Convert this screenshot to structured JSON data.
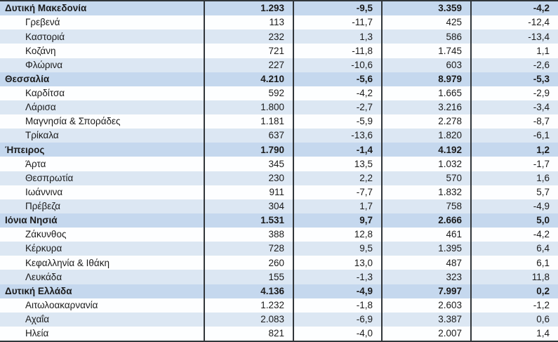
{
  "colors": {
    "region_row_bg": "#c5d8ee",
    "alt_row_bg": "#dce7f3",
    "white_row_bg": "#fdfeff",
    "border": "#31363a",
    "text": "#1b1b1b"
  },
  "table": {
    "columns": [
      "name",
      "value1",
      "value2",
      "value3",
      "value4"
    ],
    "rows": [
      {
        "label": "Δυτική Μακεδονία",
        "level": "region",
        "values": [
          "1.293",
          "-9,5",
          "3.359",
          "-4,2"
        ]
      },
      {
        "label": "Γρεβενά",
        "level": "sub",
        "values": [
          "113",
          "-11,7",
          "425",
          "-12,4"
        ]
      },
      {
        "label": "Καστοριά",
        "level": "sub",
        "values": [
          "232",
          "1,3",
          "586",
          "-13,4"
        ]
      },
      {
        "label": "Κοζάνη",
        "level": "sub",
        "values": [
          "721",
          "-11,8",
          "1.745",
          "1,1"
        ]
      },
      {
        "label": "Φλώρινα",
        "level": "sub",
        "values": [
          "227",
          "-10,6",
          "603",
          "-2,6"
        ]
      },
      {
        "label": "Θεσσαλία",
        "level": "region",
        "values": [
          "4.210",
          "-5,6",
          "8.979",
          "-5,3"
        ]
      },
      {
        "label": "Καρδίτσα",
        "level": "sub",
        "values": [
          "592",
          "-4,2",
          "1.665",
          "-2,9"
        ]
      },
      {
        "label": "Λάρισα",
        "level": "sub",
        "values": [
          "1.800",
          "-2,7",
          "3.216",
          "-3,4"
        ]
      },
      {
        "label": "Μαγνησία & Σποράδες",
        "level": "sub",
        "values": [
          "1.181",
          "-5,9",
          "2.278",
          "-8,7"
        ]
      },
      {
        "label": "Τρίκαλα",
        "level": "sub",
        "values": [
          "637",
          "-13,6",
          "1.820",
          "-6,1"
        ]
      },
      {
        "label": "Ήπειρος",
        "level": "region",
        "values": [
          "1.790",
          "-1,4",
          "4.192",
          "1,2"
        ]
      },
      {
        "label": "Άρτα",
        "level": "sub",
        "values": [
          "345",
          "13,5",
          "1.032",
          "-1,7"
        ]
      },
      {
        "label": "Θεσπρωτία",
        "level": "sub",
        "values": [
          "230",
          "2,2",
          "570",
          "1,6"
        ]
      },
      {
        "label": "Ιωάννινα",
        "level": "sub",
        "values": [
          "911",
          "-7,7",
          "1.832",
          "5,7"
        ]
      },
      {
        "label": "Πρέβεζα",
        "level": "sub",
        "values": [
          "304",
          "1,7",
          "758",
          "-4,9"
        ]
      },
      {
        "label": "Ιόνια Νησιά",
        "level": "region",
        "values": [
          "1.531",
          "9,7",
          "2.666",
          "5,0"
        ]
      },
      {
        "label": "Ζάκυνθος",
        "level": "sub",
        "values": [
          "388",
          "12,8",
          "461",
          "-4,2"
        ]
      },
      {
        "label": "Κέρκυρα",
        "level": "sub",
        "values": [
          "728",
          "9,5",
          "1.395",
          "6,4"
        ]
      },
      {
        "label": "Κεφαλληνία & Ιθάκη",
        "level": "sub",
        "values": [
          "260",
          "13,0",
          "487",
          "6,1"
        ]
      },
      {
        "label": "Λευκάδα",
        "level": "sub",
        "values": [
          "155",
          "-1,3",
          "323",
          "11,8"
        ]
      },
      {
        "label": "Δυτική Ελλάδα",
        "level": "region",
        "values": [
          "4.136",
          "-4,9",
          "7.997",
          "0,2"
        ]
      },
      {
        "label": "Αιτωλοακαρνανία",
        "level": "sub",
        "values": [
          "1.232",
          "-1,8",
          "2.603",
          "-1,2"
        ]
      },
      {
        "label": "Αχαΐα",
        "level": "sub",
        "values": [
          "2.083",
          "-6,9",
          "3.387",
          "0,6"
        ]
      },
      {
        "label": "Ηλεία",
        "level": "sub",
        "values": [
          "821",
          "-4,0",
          "2.007",
          "1,4"
        ]
      }
    ]
  }
}
